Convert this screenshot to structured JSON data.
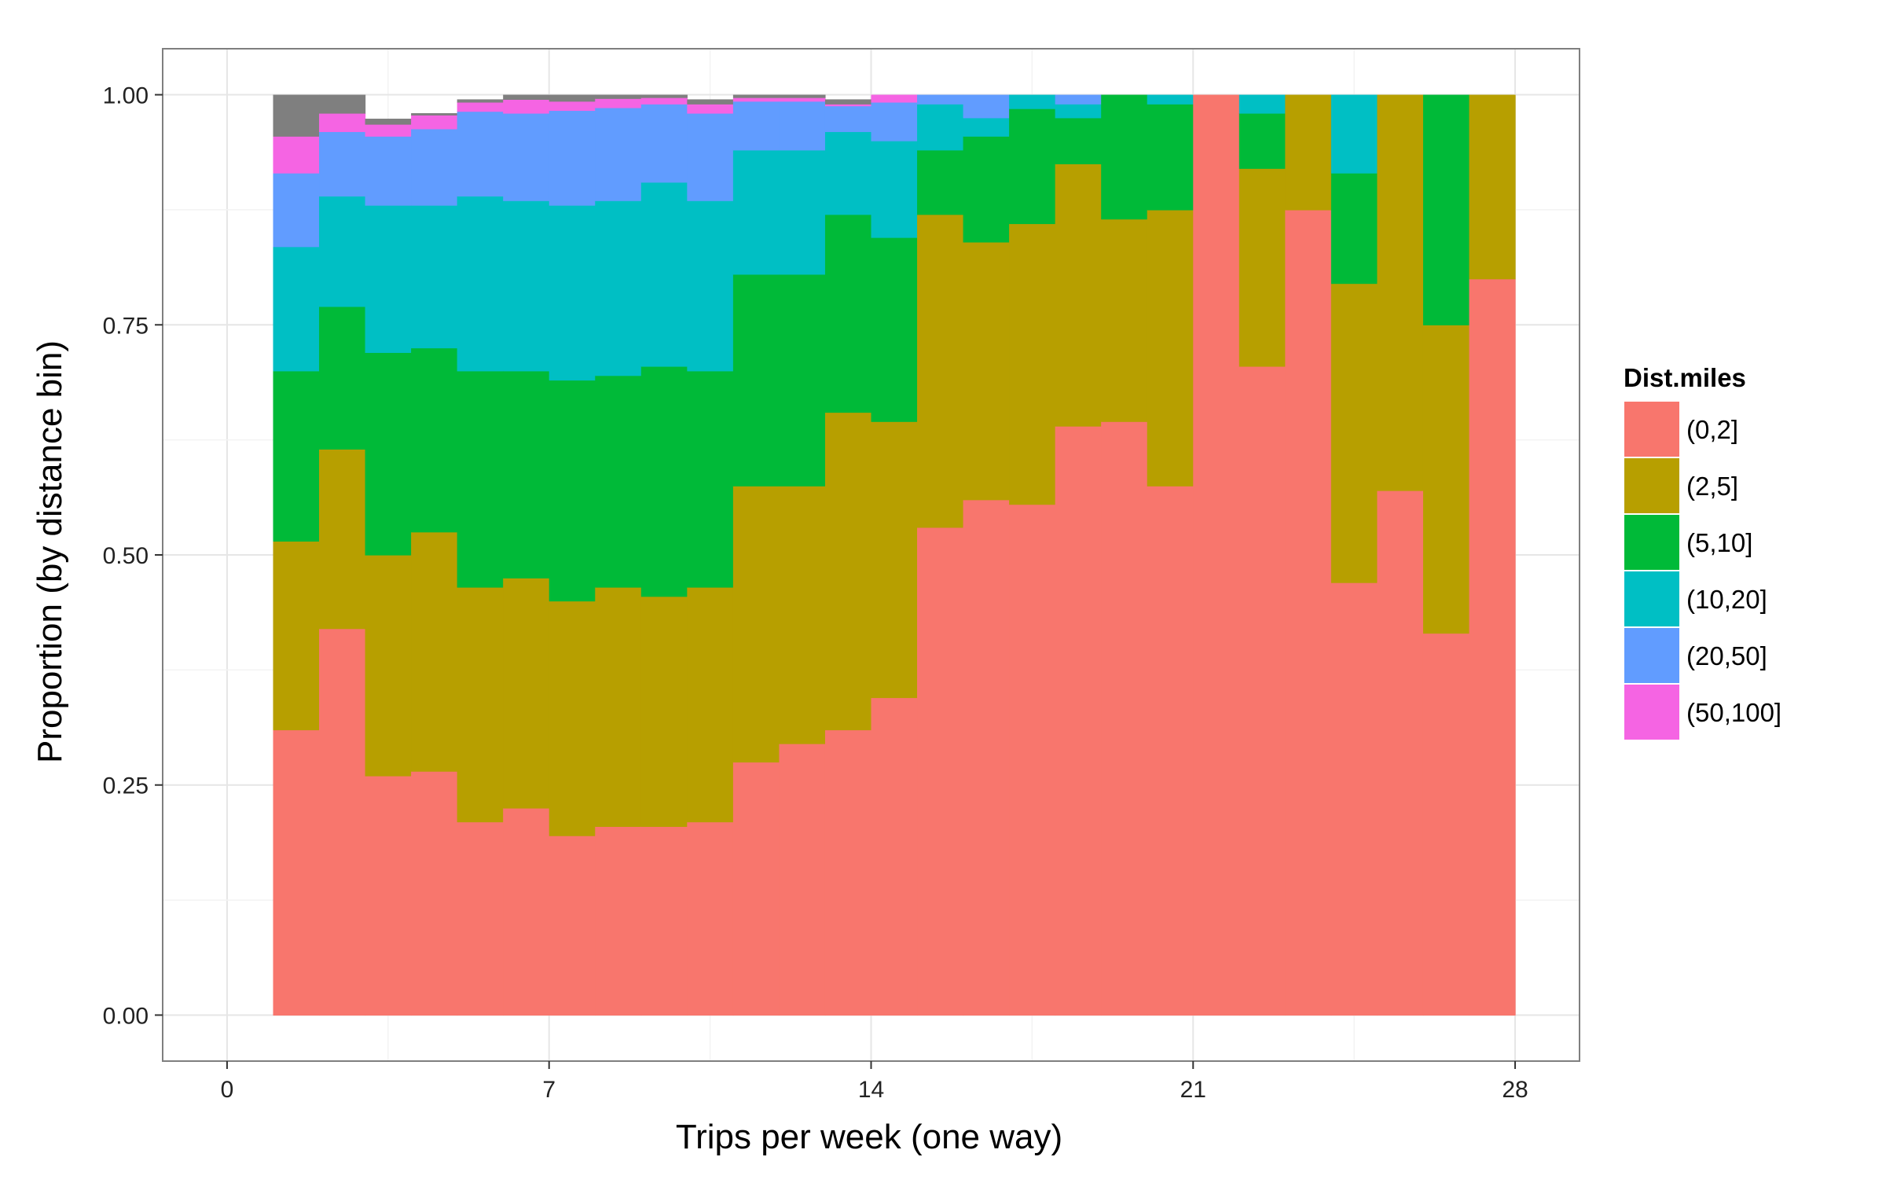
{
  "chart_data": {
    "type": "bar",
    "stacked": true,
    "normalized": true,
    "xlabel": "Trips per week (one way)",
    "ylabel": "Proportion (by distance bin)",
    "xlim": [
      -1.4,
      29.4
    ],
    "ylim": [
      -0.05,
      1.05
    ],
    "x_ticks": [
      0,
      7,
      14,
      21,
      28
    ],
    "y_ticks": [
      0,
      0.25,
      0.5,
      0.75,
      1.0
    ],
    "y_tick_labels": [
      "0.00",
      "0.25",
      "0.50",
      "0.75",
      "1.00"
    ],
    "grid": true,
    "legend": {
      "title": "Dist.miles",
      "position": "right"
    },
    "x": [
      1,
      2,
      3,
      4,
      5,
      6,
      7,
      8,
      9,
      10,
      11,
      12,
      13,
      14,
      15,
      16,
      17,
      18,
      19,
      20,
      21,
      22,
      23,
      24,
      25,
      26,
      27
    ],
    "series": [
      {
        "name": "(0,2]",
        "color": "#F8766D",
        "values": [
          0.31,
          0.42,
          0.26,
          0.265,
          0.21,
          0.225,
          0.195,
          0.205,
          0.205,
          0.21,
          0.275,
          0.295,
          0.31,
          0.345,
          0.53,
          0.56,
          0.555,
          0.64,
          0.645,
          0.575,
          1.0,
          0.705,
          0.875,
          0.47,
          0.57,
          0.415,
          0.8
        ]
      },
      {
        "name": "(2,5]",
        "color": "#B79F00",
        "values": [
          0.205,
          0.195,
          0.24,
          0.26,
          0.255,
          0.25,
          0.255,
          0.26,
          0.25,
          0.255,
          0.3,
          0.28,
          0.345,
          0.3,
          0.34,
          0.28,
          0.305,
          0.285,
          0.22,
          0.3,
          0.0,
          0.215,
          0.125,
          0.325,
          0.43,
          0.335,
          0.2
        ]
      },
      {
        "name": "(5,10]",
        "color": "#00BA38",
        "values": [
          0.185,
          0.155,
          0.22,
          0.2,
          0.235,
          0.225,
          0.24,
          0.23,
          0.25,
          0.235,
          0.23,
          0.23,
          0.215,
          0.2,
          0.07,
          0.115,
          0.125,
          0.05,
          0.135,
          0.115,
          0.0,
          0.06,
          0.0,
          0.12,
          0.0,
          0.25,
          0.0
        ]
      },
      {
        "name": "(10,20]",
        "color": "#00BFC4",
        "values": [
          0.135,
          0.12,
          0.16,
          0.155,
          0.19,
          0.185,
          0.19,
          0.19,
          0.2,
          0.185,
          0.135,
          0.135,
          0.09,
          0.105,
          0.05,
          0.02,
          0.015,
          0.015,
          0.0,
          0.01,
          0.0,
          0.02,
          0.0,
          0.085,
          0.0,
          0.0,
          0.0
        ]
      },
      {
        "name": "(20,50]",
        "color": "#619CFF",
        "values": [
          0.08,
          0.07,
          0.075,
          0.083,
          0.092,
          0.095,
          0.103,
          0.101,
          0.085,
          0.095,
          0.053,
          0.053,
          0.028,
          0.042,
          0.01,
          0.025,
          0.0,
          0.01,
          0.0,
          0.0,
          0.0,
          0.0,
          0.0,
          0.0,
          0.0,
          0.0,
          0.0
        ]
      },
      {
        "name": "(50,100]",
        "color": "#F564E3",
        "values": [
          0.04,
          0.02,
          0.013,
          0.015,
          0.01,
          0.015,
          0.01,
          0.01,
          0.007,
          0.01,
          0.004,
          0.004,
          0.002,
          0.008,
          0.0,
          0.0,
          0.0,
          0.0,
          0.0,
          0.0,
          0.0,
          0.0,
          0.0,
          0.0,
          0.0,
          0.0,
          0.0
        ]
      },
      {
        "name": "",
        "color": "#7F7F7F",
        "values": [
          0.045,
          0.02,
          0.006,
          0.002,
          0.003,
          0.005,
          0.007,
          0.004,
          0.003,
          0.005,
          0.003,
          0.003,
          0.005,
          0.0,
          0.0,
          0.0,
          0.0,
          0.0,
          0.0,
          0.0,
          0.0,
          0.0,
          0.0,
          0.0,
          0.0,
          0.0,
          0.0
        ]
      }
    ]
  }
}
